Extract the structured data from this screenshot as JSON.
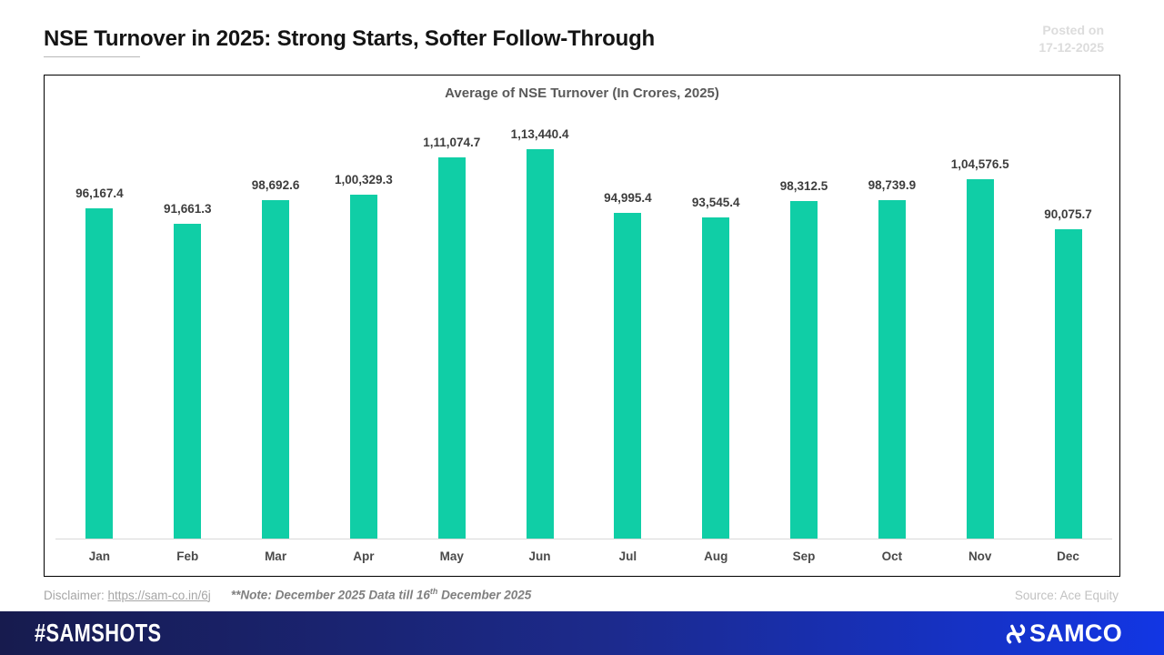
{
  "header": {
    "title": "NSE Turnover in 2025: Strong Starts, Softer Follow-Through",
    "posted_on_label": "Posted on",
    "posted_on_date": "17-12-2025"
  },
  "chart_data": {
    "type": "bar",
    "title": "Average of NSE Turnover (In Crores, 2025)",
    "categories": [
      "Jan",
      "Feb",
      "Mar",
      "Apr",
      "May",
      "Jun",
      "Jul",
      "Aug",
      "Sep",
      "Oct",
      "Nov",
      "Dec"
    ],
    "values": [
      96167.4,
      91661.3,
      98692.6,
      100329.3,
      111074.7,
      113440.4,
      94995.4,
      93545.4,
      98312.5,
      98739.9,
      104576.5,
      90075.7
    ],
    "labels": [
      "96,167.4",
      "91,661.3",
      "98,692.6",
      "1,00,329.3",
      "1,11,074.7",
      "1,13,440.4",
      "94,995.4",
      "93,545.4",
      "98,312.5",
      "98,739.9",
      "1,04,576.5",
      "90,075.7"
    ],
    "bar_color": "#10cea6",
    "xlabel": "",
    "ylabel": "",
    "ylim": [
      0,
      113440.4
    ],
    "grid": false,
    "legend_position": "none"
  },
  "footnotes": {
    "disclaimer_label": "Disclaimer: ",
    "disclaimer_link": "https://sam-co.in/6j",
    "note_prefix": "**Note: December 2025 Data till 16",
    "note_sup": "th",
    "note_suffix": " December 2025",
    "source": "Source: Ace Equity"
  },
  "footer": {
    "hashtag": "#SAMSHOTS",
    "brand": "SAMCO",
    "brand_icon": "samco-pinwheel-icon",
    "gradient_start": "#171b4e",
    "gradient_mid": "#1c2a8c",
    "gradient_end": "#1236e4"
  }
}
